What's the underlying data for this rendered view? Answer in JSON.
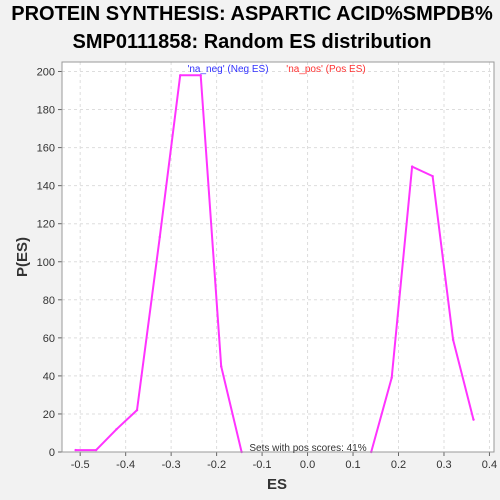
{
  "chart_data": {
    "type": "line",
    "title_lines": [
      "PROTEIN SYNTHESIS: ASPARTIC ACID%SMPDB%",
      "SMP0111858: Random ES distribution"
    ],
    "xlabel": "ES",
    "ylabel": "P(ES)",
    "xlim": [
      -0.54,
      0.41
    ],
    "ylim": [
      0,
      205
    ],
    "xticks": [
      -0.5,
      -0.4,
      -0.3,
      -0.2,
      -0.1,
      0.0,
      0.1,
      0.2,
      0.3,
      0.4
    ],
    "xtick_labels": [
      "-0.5",
      "-0.4",
      "-0.3",
      "-0.2",
      "-0.1",
      "0.0",
      "0.1",
      "0.2",
      "0.3",
      "0.4"
    ],
    "yticks": [
      0,
      20,
      40,
      60,
      80,
      100,
      120,
      140,
      160,
      180,
      200
    ],
    "ytick_labels": [
      "0",
      "20",
      "40",
      "60",
      "80",
      "100",
      "120",
      "140",
      "160",
      "180",
      "200"
    ],
    "grid": true,
    "legend_placement": "top",
    "series": [
      {
        "name": "'na_neg' (Neg ES)",
        "color": "#ff33ff",
        "x": [
          -0.51,
          -0.465,
          -0.42,
          -0.375,
          -0.325,
          -0.28,
          -0.235,
          -0.19,
          -0.145
        ],
        "y": [
          1,
          1,
          12,
          22,
          113,
          198,
          198,
          45,
          0
        ]
      },
      {
        "name": "'na_pos' (Pos ES)",
        "color": "#ff33ff",
        "x": [
          0.14,
          0.185,
          0.23,
          0.275,
          0.32,
          0.365
        ],
        "y": [
          0,
          39,
          150,
          145,
          59,
          17
        ]
      }
    ],
    "legend_colors": [
      "#3333ff",
      "#ff3333"
    ],
    "annotation": "Sets with pos scores: 41%"
  }
}
